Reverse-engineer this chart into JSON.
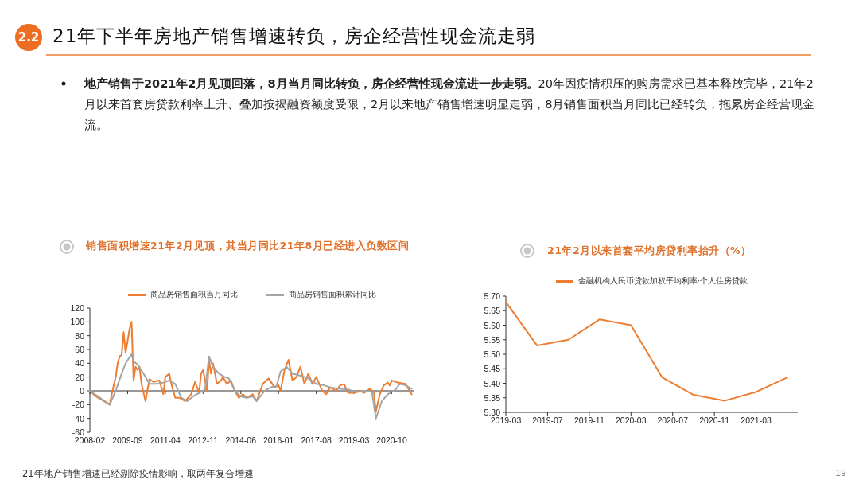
{
  "chart_data": [
    {
      "type": "other",
      "title": "21年下半年房地产销售增速转负，房企经营性现金流走弱",
      "annotations": [
        "2.2",
        "地产销售于2021年2月见顶回落，8月当月同比转负，房企经营性现金流进一步走弱。",
        "20年因疫情积压的购房需求已基本释放完毕，21年2月以来首套房贷款利率上升、叠加按揭融资额度受限，2月以来地产销售增速明显走弱，8月销售面积当月同比已经转负，拖累房企经营现金流。",
        "21年地产销售增速已经剔除疫情影响，取两年复合增速",
        "19"
      ]
    },
    {
      "type": "line",
      "title": "销售面积增速21年2月见顶，其当月同比21年8月已经进入负数区间",
      "legend": "top",
      "xlim": [
        "2008-02",
        "2021-09"
      ],
      "xticks": [
        "2008-02",
        "2009-09",
        "2011-04",
        "2012-11",
        "2014-06",
        "2016-01",
        "2017-08",
        "2019-03",
        "2020-10"
      ],
      "ylim": [
        -60,
        120
      ],
      "yticks": [
        -60,
        -40,
        -20,
        0,
        20,
        40,
        60,
        80,
        100,
        120
      ],
      "series": [
        {
          "name": "商品房销售面积当月同比",
          "color": "#ed7d31",
          "x": [
            "2008-02",
            "2008-05",
            "2008-12",
            "2009-01",
            "2009-03",
            "2009-04",
            "2009-05",
            "2009-06",
            "2009-07",
            "2009-08",
            "2009-10",
            "2009-11",
            "2009-12",
            "2010-01",
            "2010-02",
            "2010-03",
            "2010-04",
            "2010-06",
            "2010-08",
            "2010-10",
            "2011-01",
            "2011-03",
            "2011-04",
            "2011-06",
            "2011-07",
            "2011-09",
            "2011-11",
            "2012-02",
            "2012-05",
            "2012-07",
            "2012-09",
            "2012-10",
            "2012-11",
            "2013-01",
            "2013-02",
            "2013-03",
            "2013-04",
            "2013-06",
            "2013-08",
            "2013-09",
            "2013-11",
            "2014-01",
            "2014-03",
            "2014-05",
            "2014-07",
            "2014-09",
            "2014-12",
            "2015-02",
            "2015-05",
            "2015-08",
            "2015-11",
            "2016-01",
            "2016-02",
            "2016-04",
            "2016-06",
            "2016-08",
            "2016-10",
            "2016-12",
            "2017-02",
            "2017-04",
            "2017-06",
            "2017-08",
            "2017-11",
            "2018-01",
            "2018-03",
            "2018-06",
            "2018-08",
            "2018-10",
            "2018-12",
            "2019-03",
            "2019-06",
            "2019-08",
            "2019-11",
            "2020-01",
            "2020-02",
            "2020-04",
            "2020-06",
            "2020-08",
            "2020-09",
            "2020-10",
            "2021-01",
            "2021-05",
            "2021-07",
            "2021-08"
          ],
          "values": [
            0,
            -8,
            -20,
            -5,
            20,
            40,
            50,
            52,
            85,
            55,
            90,
            100,
            15,
            35,
            30,
            35,
            10,
            -15,
            17,
            13,
            15,
            -5,
            20,
            25,
            10,
            -10,
            -10,
            -15,
            -5,
            13,
            -3,
            25,
            30,
            0,
            45,
            25,
            40,
            10,
            15,
            20,
            10,
            15,
            0,
            -10,
            -5,
            -10,
            -5,
            -15,
            10,
            18,
            5,
            8,
            0,
            30,
            45,
            15,
            20,
            35,
            10,
            25,
            10,
            20,
            0,
            -5,
            5,
            0,
            8,
            10,
            -3,
            -3,
            0,
            -3,
            3,
            -2,
            -30,
            -5,
            8,
            12,
            8,
            15,
            12,
            10,
            0,
            -5
          ]
        },
        {
          "name": "商品房销售面积累计同比",
          "color": "#a5a5a5",
          "x": [
            "2008-02",
            "2008-06",
            "2008-12",
            "2009-03",
            "2009-06",
            "2009-08",
            "2009-11",
            "2009-12",
            "2010-02",
            "2010-05",
            "2010-08",
            "2010-12",
            "2011-03",
            "2011-06",
            "2011-09",
            "2011-12",
            "2012-03",
            "2012-06",
            "2012-09",
            "2012-12",
            "2013-02",
            "2013-04",
            "2013-07",
            "2013-10",
            "2013-12",
            "2014-03",
            "2014-06",
            "2014-09",
            "2014-12",
            "2015-02",
            "2015-06",
            "2015-09",
            "2015-12",
            "2016-02",
            "2016-05",
            "2016-08",
            "2016-12",
            "2017-04",
            "2017-08",
            "2017-12",
            "2018-03",
            "2018-08",
            "2018-12",
            "2019-04",
            "2019-08",
            "2019-12",
            "2020-02",
            "2020-05",
            "2020-08",
            "2020-12",
            "2021-02",
            "2021-05",
            "2021-08"
          ],
          "values": [
            0,
            -8,
            -20,
            0,
            25,
            40,
            53,
            43,
            38,
            25,
            10,
            10,
            12,
            15,
            10,
            -10,
            -15,
            -8,
            -3,
            2,
            50,
            35,
            25,
            20,
            18,
            0,
            -8,
            -10,
            -8,
            -15,
            0,
            5,
            7,
            28,
            35,
            25,
            22,
            18,
            10,
            8,
            5,
            3,
            2,
            -2,
            0,
            -1,
            -40,
            -15,
            -5,
            2,
            10,
            8,
            3
          ]
        }
      ]
    },
    {
      "type": "line",
      "title": "21年2月以来首套平均房贷利率抬升（%）",
      "legend": "top",
      "xlim": [
        "2019-03",
        "2021-07"
      ],
      "xticks": [
        "2019-03",
        "2019-07",
        "2019-11",
        "2020-03",
        "2020-07",
        "2020-11",
        "2021-03"
      ],
      "ylim": [
        5.3,
        5.7
      ],
      "yticks": [
        {
          "value": 5.3,
          "label": "5.30"
        },
        {
          "value": 5.35,
          "label": "5.35"
        },
        {
          "value": 5.4,
          "label": "5.40"
        },
        {
          "value": 5.45,
          "label": "5.45"
        },
        {
          "value": 5.5,
          "label": "5.50"
        },
        {
          "value": 5.55,
          "label": "5.55"
        },
        {
          "value": 5.6,
          "label": "5.60"
        },
        {
          "value": 5.65,
          "label": "5.65"
        },
        {
          "value": 5.7,
          "label": "5.70"
        }
      ],
      "series": [
        {
          "name": "金融机构人民币贷款加权平均利率:个人住房贷款",
          "color": "#ed7d31",
          "x": [
            "2019-03",
            "2019-06",
            "2019-09",
            "2019-12",
            "2020-03",
            "2020-06",
            "2020-09",
            "2020-12",
            "2021-03",
            "2021-06"
          ],
          "values": [
            5.68,
            5.53,
            5.55,
            5.62,
            5.6,
            5.42,
            5.36,
            5.34,
            5.37,
            5.42
          ]
        }
      ]
    }
  ]
}
